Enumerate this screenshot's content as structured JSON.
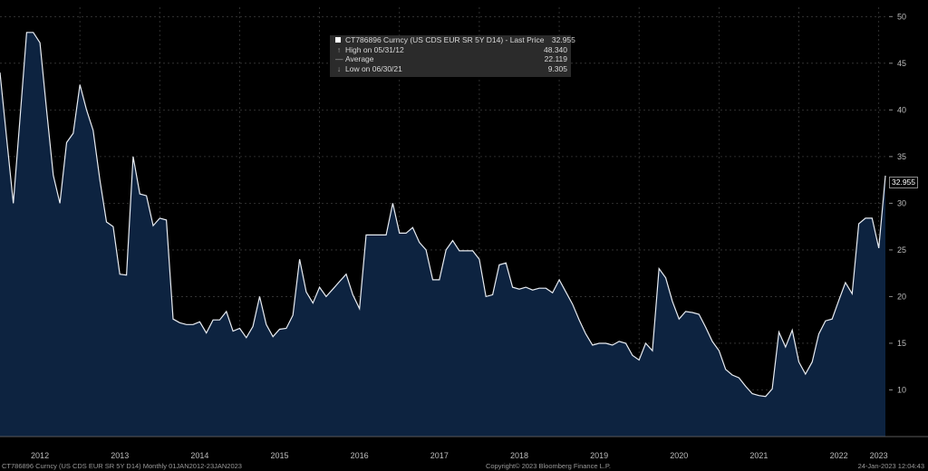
{
  "legend": {
    "title": "CT786896 Curncy (US CDS EUR SR 5Y D14) - Last Price",
    "last_value": "32.955",
    "high_label": "High on 05/31/12",
    "high_value": "48.340",
    "avg_label": "Average",
    "avg_value": "22.119",
    "low_label": "Low on 06/30/21",
    "low_value": "9.305"
  },
  "last_tag": "32.955",
  "footer": {
    "left": "CT786896 Curncy (US CDS EUR SR 5Y D14) Monthly 01JAN2012-23JAN2023",
    "center": "Copyright© 2023 Bloomberg Finance L.P.",
    "right": "24-Jan-2023 12:04:43"
  },
  "colors": {
    "line": "#e8ecf2",
    "fill": "#0d2340",
    "grid": "#3a3a3a"
  },
  "chart_data": {
    "type": "area",
    "title": "",
    "xlabel": "",
    "ylabel": "",
    "ylim": [
      5,
      51
    ],
    "yticks": [
      10,
      15,
      20,
      25,
      30,
      35,
      40,
      45,
      50
    ],
    "year_ticks": [
      "2012",
      "2013",
      "2014",
      "2015",
      "2016",
      "2017",
      "2018",
      "2019",
      "2020",
      "2021",
      "2022",
      "2023"
    ],
    "grid": true,
    "series": [
      {
        "name": "",
        "values": [
          44,
          37,
          30,
          39,
          48.3,
          48.3,
          47.2,
          40,
          33,
          30,
          36.5,
          37.5,
          42.7,
          40,
          37.8,
          32.5,
          28,
          27.5,
          22.4,
          22.3,
          35,
          31,
          30.8,
          27.6,
          28.4,
          28.2,
          17.6,
          17.2,
          17,
          17,
          17.3,
          16.1,
          17.5,
          17.5,
          18.4,
          16.3,
          16.6,
          15.6,
          16.8,
          20,
          17,
          15.7,
          16.5,
          16.6,
          18,
          24,
          20.5,
          19.3,
          21,
          20,
          20.8,
          21.6,
          22.4,
          20.2,
          18.7,
          26.6,
          26.6,
          26.6,
          26.6,
          30,
          26.8,
          26.8,
          27.4,
          25.8,
          25,
          21.8,
          21.8,
          25,
          26,
          24.9,
          24.9,
          24.9,
          24,
          20,
          20.2,
          23.4,
          23.6,
          21,
          20.8,
          21,
          20.7,
          20.9,
          20.9,
          20.4,
          21.8,
          20.5,
          19.2,
          17.5,
          16,
          14.8,
          15,
          15,
          14.8,
          15.2,
          15,
          13.7,
          13.2,
          15,
          14.2,
          23,
          22,
          19.5,
          17.6,
          18.4,
          18.3,
          18.1,
          16.7,
          15.2,
          14.2,
          12.2,
          11.6,
          11.3,
          10.4,
          9.6,
          9.4,
          9.3,
          10.1,
          16.2,
          14.6,
          16.4,
          13,
          11.7,
          13,
          16,
          17.4,
          17.6,
          19.6,
          21.5,
          20.3,
          27.8,
          28.4,
          28.4,
          25.2,
          32.955
        ]
      }
    ]
  }
}
